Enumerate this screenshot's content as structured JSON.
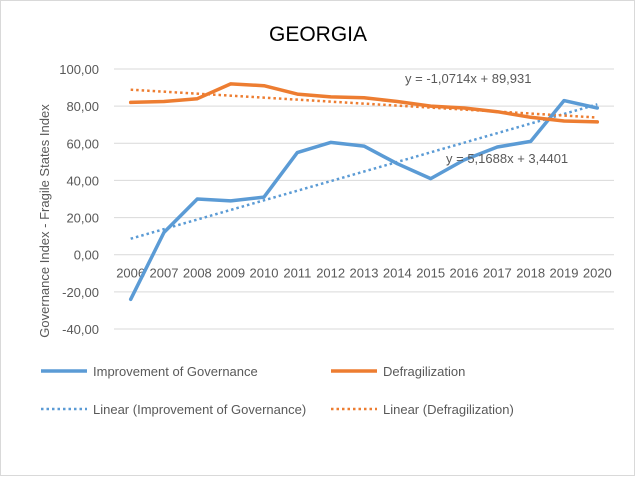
{
  "chart_data": {
    "type": "line",
    "title": "GEORGIA",
    "ylabel": "Governance Index   -   Fragile States Index",
    "xlabel": "",
    "ylim": [
      -40,
      100
    ],
    "ytick_step": 20,
    "ytick_labels": [
      "-40,00",
      "-20,00",
      "0,00",
      "20,00",
      "40,00",
      "60,00",
      "80,00",
      "100,00"
    ],
    "categories": [
      "2006",
      "2007",
      "2008",
      "2009",
      "2010",
      "2011",
      "2012",
      "2013",
      "2014",
      "2015",
      "2016",
      "2017",
      "2018",
      "2019",
      "2020"
    ],
    "grid": true,
    "series": [
      {
        "name": "Improvement of Governance",
        "color": "#5B9BD5",
        "values": [
          -24,
          12,
          30,
          29,
          31,
          55,
          60.5,
          58.5,
          49,
          41,
          51,
          58,
          61,
          83,
          79
        ]
      },
      {
        "name": "Defragilization",
        "color": "#ED7D31",
        "values": [
          82,
          82.5,
          84,
          92,
          91,
          86.5,
          85,
          84.5,
          82.5,
          80,
          79,
          77,
          74,
          72,
          71.5
        ]
      }
    ],
    "trendlines": [
      {
        "name": "Linear (Improvement of Governance)",
        "color": "#5B9BD5",
        "slope": 5.1688,
        "intercept": 3.4401,
        "equation": "y = 5,1688x + 3,4401"
      },
      {
        "name": "Linear (Defragilization)",
        "color": "#ED7D31",
        "slope": -1.0714,
        "intercept": 89.931,
        "equation": "y = -1,0714x + 89,931"
      }
    ],
    "legend": {
      "placement": "bottom",
      "items": [
        "Improvement of Governance",
        "Defragilization",
        "Linear (Improvement of Governance)",
        "Linear (Defragilization)"
      ]
    }
  }
}
